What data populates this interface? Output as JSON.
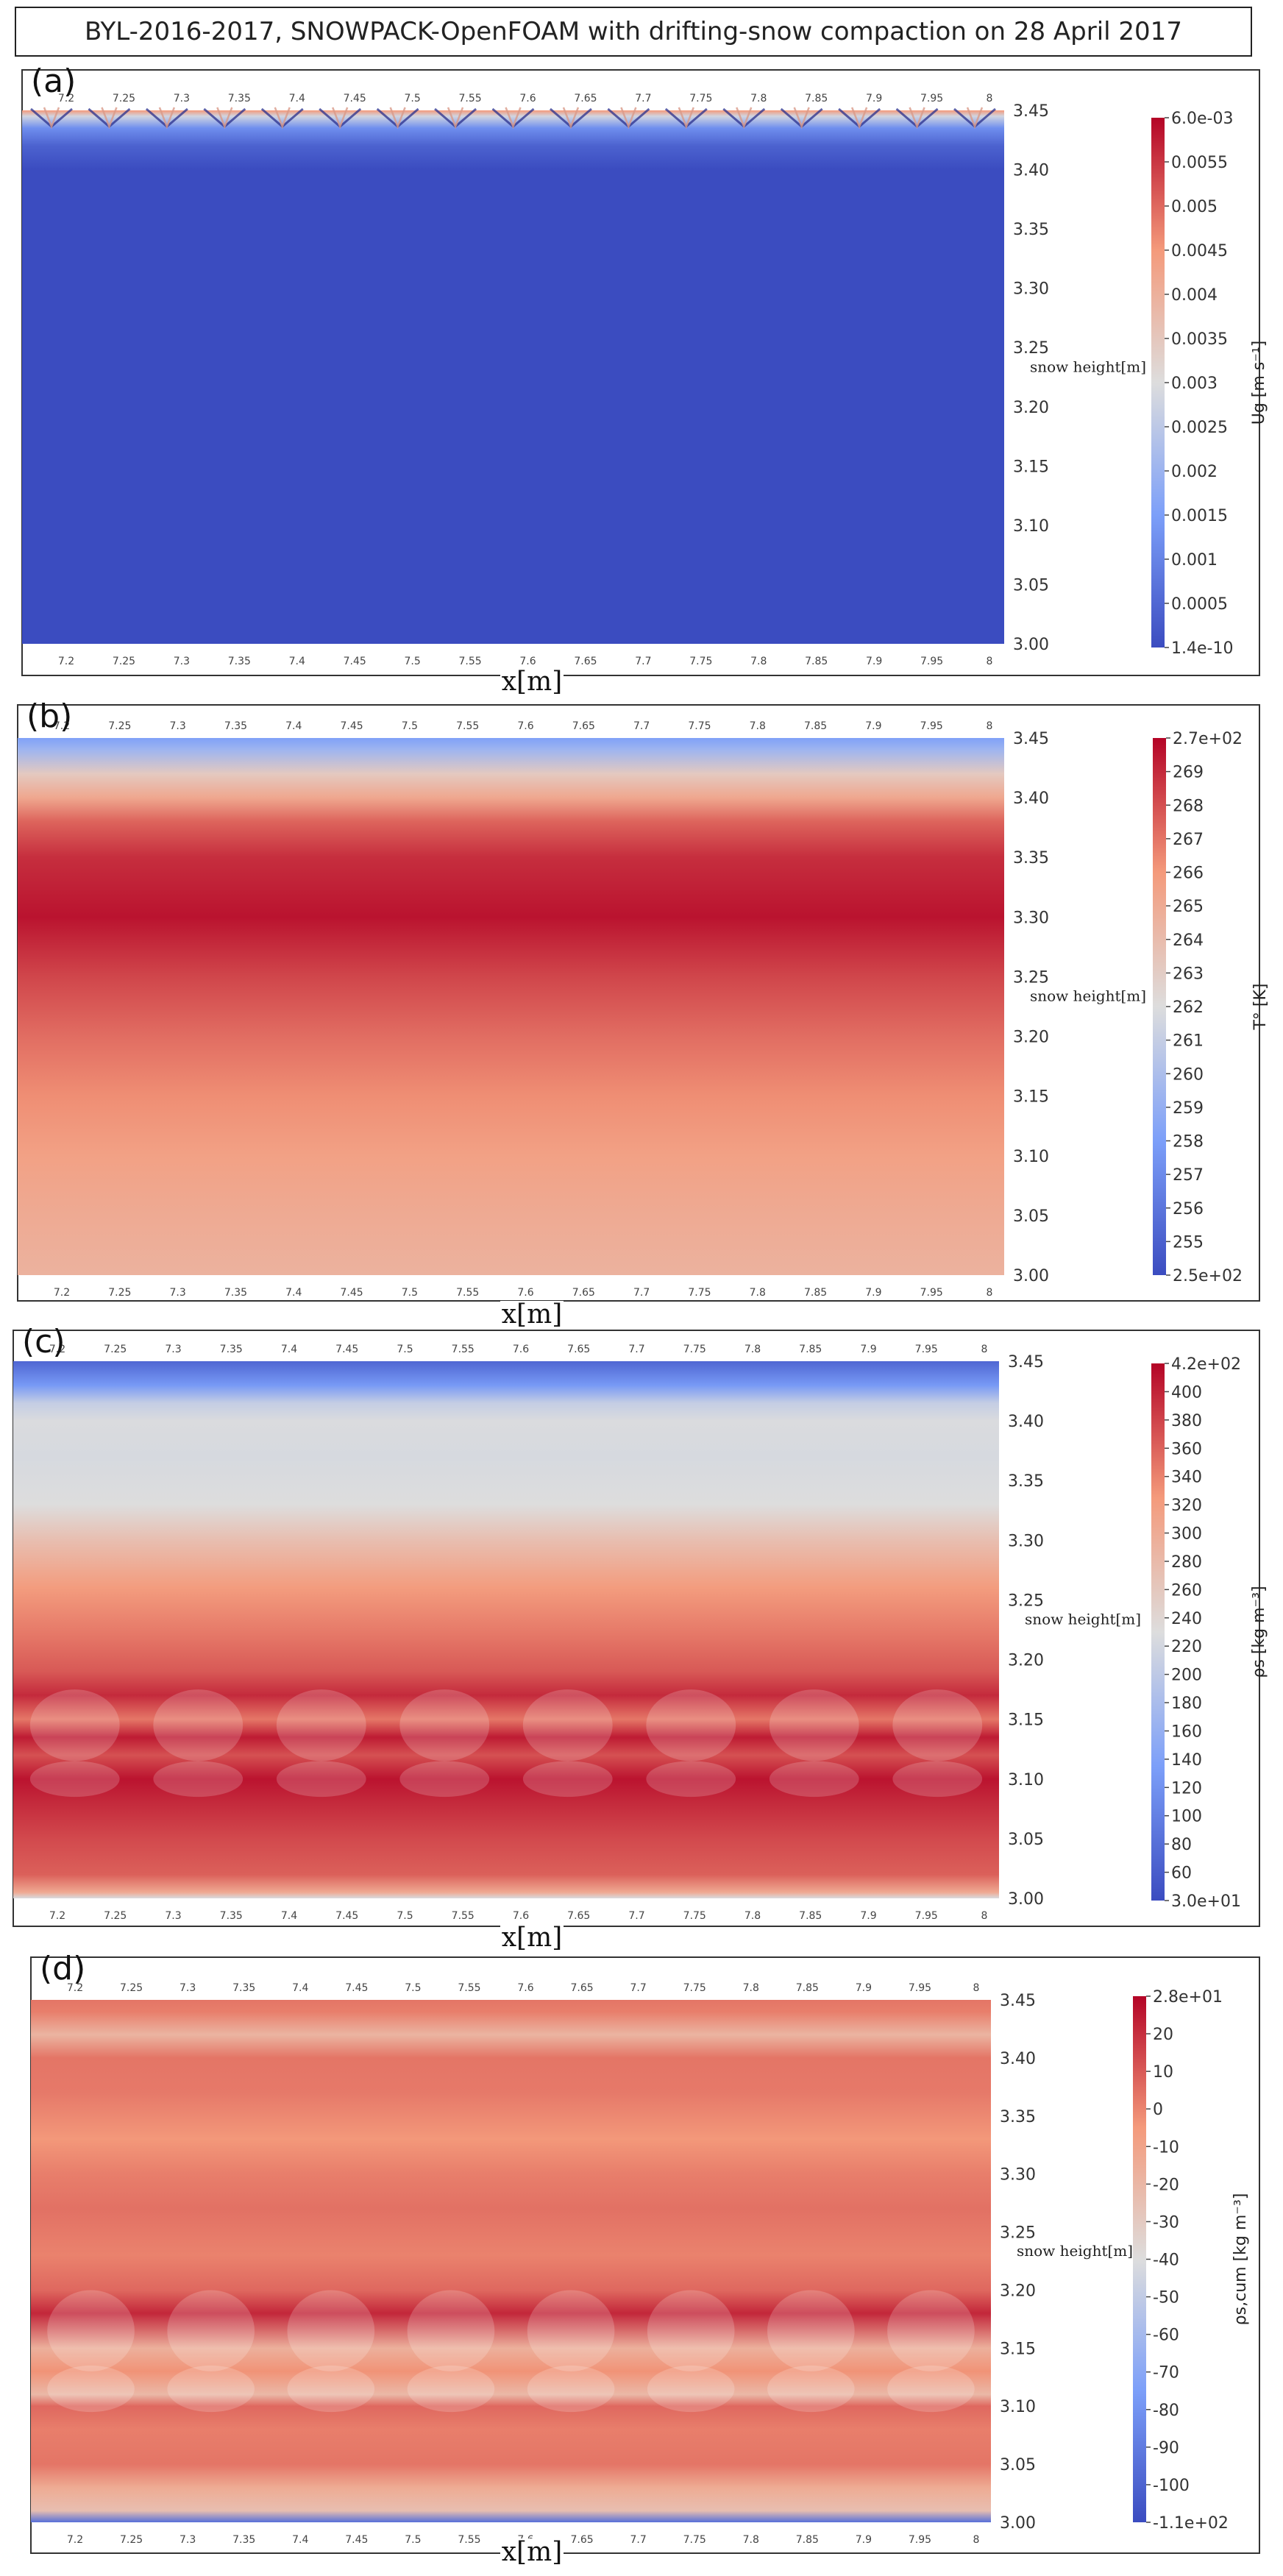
{
  "title": "BYL-2016-2017, SNOWPACK-OpenFOAM with drifting-snow compaction on 28 April 2017",
  "chart_data": [
    {
      "type": "heatmap",
      "panel_label": "(a)",
      "xlabel": "x[m]",
      "ylabel": "snow height[m]",
      "x_ticks": [
        "7.2",
        "7.25",
        "7.3",
        "7.35",
        "7.4",
        "7.45",
        "7.5",
        "7.55",
        "7.6",
        "7.65",
        "7.7",
        "7.75",
        "7.8",
        "7.85",
        "7.9",
        "7.95",
        "8"
      ],
      "y_ticks": [
        "3.45",
        "3.40",
        "3.35",
        "3.30",
        "3.25",
        "3.20",
        "3.15",
        "3.10",
        "3.05",
        "3.00"
      ],
      "xlim": [
        7.2,
        8.0
      ],
      "ylim": [
        3.0,
        3.45
      ],
      "colorbar_label": "Ug [m s⁻¹]",
      "colorbar_ticks": [
        "6.0e-03",
        "0.0055",
        "0.005",
        "0.0045",
        "0.004",
        "0.0035",
        "0.003",
        "0.0025",
        "0.002",
        "0.0015",
        "0.001",
        "0.0005",
        "1.4e-10"
      ],
      "colorbar_min": 1.4e-10,
      "colorbar_max": 0.006,
      "colormap": "Cool to Warm",
      "profile_heights": [
        3.0,
        3.4,
        3.42,
        3.435,
        3.445,
        3.45
      ],
      "profile_values": [
        0.0,
        0.0,
        0.0004,
        0.0012,
        0.0028,
        0.0045
      ]
    },
    {
      "type": "heatmap",
      "panel_label": "(b)",
      "xlabel": "x[m]",
      "ylabel": "snow height[m]",
      "x_ticks": [
        "7.2",
        "7.25",
        "7.3",
        "7.35",
        "7.4",
        "7.45",
        "7.5",
        "7.55",
        "7.6",
        "7.65",
        "7.7",
        "7.75",
        "7.8",
        "7.85",
        "7.9",
        "7.95",
        "8"
      ],
      "y_ticks": [
        "3.45",
        "3.40",
        "3.35",
        "3.30",
        "3.25",
        "3.20",
        "3.15",
        "3.10",
        "3.05",
        "3.00"
      ],
      "xlim": [
        7.2,
        8.0
      ],
      "ylim": [
        3.0,
        3.45
      ],
      "colorbar_label": "T° [K]",
      "colorbar_ticks": [
        "2.7e+02",
        "269",
        "268",
        "267",
        "266",
        "265",
        "264",
        "263",
        "262",
        "261",
        "260",
        "259",
        "258",
        "257",
        "256",
        "255",
        "2.5e+02"
      ],
      "colorbar_min": 250,
      "colorbar_max": 270,
      "colormap": "Cool to Warm",
      "profile_heights": [
        3.0,
        3.05,
        3.1,
        3.15,
        3.2,
        3.25,
        3.3,
        3.35,
        3.38,
        3.4,
        3.42,
        3.44,
        3.45
      ],
      "profile_values": [
        263.2,
        263.8,
        264.5,
        265.4,
        266.5,
        267.8,
        269.5,
        268.6,
        266.8,
        264.0,
        261.5,
        256.8,
        255.2
      ]
    },
    {
      "type": "heatmap",
      "panel_label": "(c)",
      "xlabel": "x[m]",
      "ylabel": "snow height[m]",
      "x_ticks": [
        "7.2",
        "7.25",
        "7.3",
        "7.35",
        "7.4",
        "7.45",
        "7.5",
        "7.55",
        "7.6",
        "7.65",
        "7.7",
        "7.75",
        "7.8",
        "7.85",
        "7.9",
        "7.95",
        "8"
      ],
      "y_ticks": [
        "3.45",
        "3.40",
        "3.35",
        "3.30",
        "3.25",
        "3.20",
        "3.15",
        "3.10",
        "3.05",
        "3.00"
      ],
      "xlim": [
        7.2,
        8.0
      ],
      "ylim": [
        3.0,
        3.45
      ],
      "colorbar_label": "ρs [kg m⁻³]",
      "colorbar_ticks": [
        "4.2e+02",
        "400",
        "380",
        "360",
        "340",
        "320",
        "300",
        "280",
        "260",
        "240",
        "220",
        "200",
        "180",
        "160",
        "140",
        "120",
        "100",
        "80",
        "60",
        "3.0e+01"
      ],
      "colorbar_min": 30,
      "colorbar_max": 420,
      "colormap": "Cool to Warm",
      "profile_heights": [
        3.0,
        3.005,
        3.02,
        3.05,
        3.08,
        3.1,
        3.12,
        3.135,
        3.15,
        3.17,
        3.19,
        3.22,
        3.26,
        3.3,
        3.33,
        3.37,
        3.4,
        3.415,
        3.43,
        3.45
      ],
      "profile_values": [
        220,
        300,
        360,
        375,
        395,
        410,
        370,
        405,
        345,
        395,
        365,
        345,
        320,
        270,
        225,
        218,
        222,
        200,
        120,
        60
      ]
    },
    {
      "type": "heatmap",
      "panel_label": "(d)",
      "xlabel": "x[m]",
      "ylabel": "snow height[m]",
      "x_ticks": [
        "7.2",
        "7.25",
        "7.3",
        "7.35",
        "7.4",
        "7.45",
        "7.5",
        "7.55",
        "7.6",
        "7.65",
        "7.7",
        "7.75",
        "7.8",
        "7.85",
        "7.9",
        "7.95",
        "8"
      ],
      "y_ticks": [
        "3.45",
        "3.40",
        "3.35",
        "3.30",
        "3.25",
        "3.20",
        "3.15",
        "3.10",
        "3.05",
        "3.00"
      ],
      "xlim": [
        7.2,
        8.0
      ],
      "ylim": [
        3.0,
        3.45
      ],
      "colorbar_label": "ρs,cum [kg m⁻³]",
      "colorbar_ticks": [
        "2.8e+01",
        "20",
        "10",
        "0",
        "-10",
        "-20",
        "-30",
        "-40",
        "-50",
        "-60",
        "-70",
        "-80",
        "-90",
        "-100",
        "-1.1e+02"
      ],
      "colorbar_min": -110,
      "colorbar_max": 28,
      "colormap": "Cool to Warm",
      "profile_heights": [
        3.0,
        3.01,
        3.03,
        3.05,
        3.08,
        3.1,
        3.11,
        3.13,
        3.15,
        3.18,
        3.2,
        3.23,
        3.27,
        3.3,
        3.33,
        3.37,
        3.4,
        3.42,
        3.44,
        3.45
      ],
      "profile_values": [
        -95,
        -25,
        -15,
        2,
        0,
        5,
        -22,
        -5,
        -18,
        20,
        5,
        -1,
        3,
        0,
        -6,
        1,
        2,
        -20,
        0,
        2
      ]
    }
  ]
}
